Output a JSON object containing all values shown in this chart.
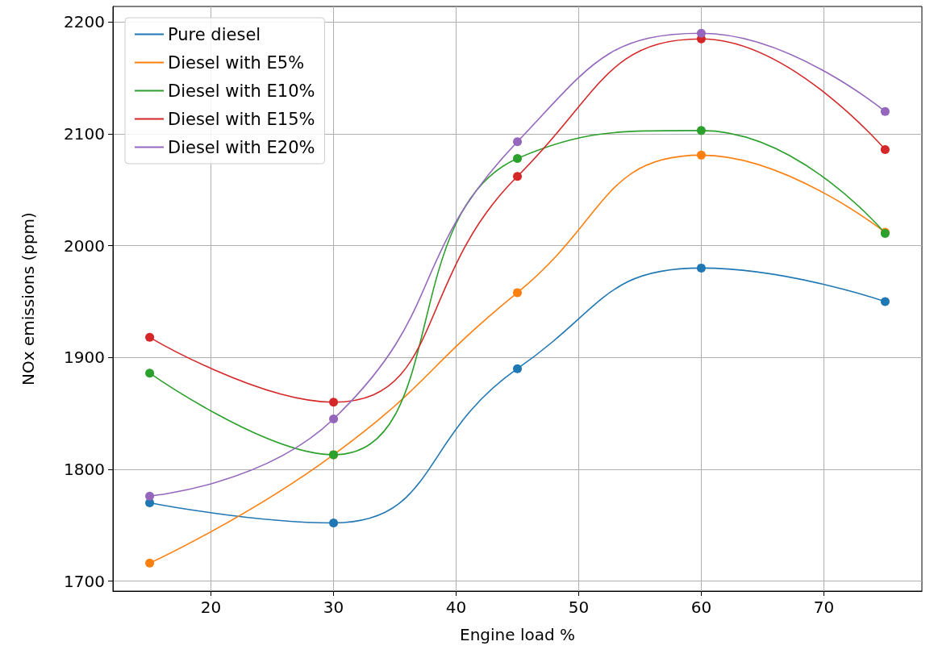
{
  "chart_data": {
    "type": "line",
    "xlabel": "Engine load %",
    "ylabel": "NOx emissions (ppm)",
    "x": [
      15,
      30,
      45,
      60,
      75
    ],
    "series": [
      {
        "name": "Pure diesel",
        "color": "#1f77b4",
        "values": [
          1770,
          1752,
          1890,
          1980,
          1950
        ]
      },
      {
        "name": "Diesel with E5%",
        "color": "#ff7f0e",
        "values": [
          1716,
          1813,
          1958,
          2081,
          2012
        ]
      },
      {
        "name": "Diesel with E10%",
        "color": "#2ca02c",
        "values": [
          1886,
          1813,
          2078,
          2103,
          2011
        ]
      },
      {
        "name": "Diesel with E15%",
        "color": "#d62728",
        "values": [
          1918,
          1860,
          2062,
          2185,
          2086
        ]
      },
      {
        "name": "Diesel with E20%",
        "color": "#9467bd",
        "values": [
          1776,
          1845,
          2093,
          2190,
          2120
        ]
      }
    ],
    "xlim": [
      12,
      78
    ],
    "xticks": [
      20,
      30,
      40,
      50,
      60,
      70
    ],
    "ylim": [
      1691,
      2214
    ],
    "yticks": [
      1700,
      1800,
      1900,
      2000,
      2100,
      2200
    ],
    "grid": true,
    "legend": "top left",
    "marker": "circle",
    "line_style": "solid"
  }
}
